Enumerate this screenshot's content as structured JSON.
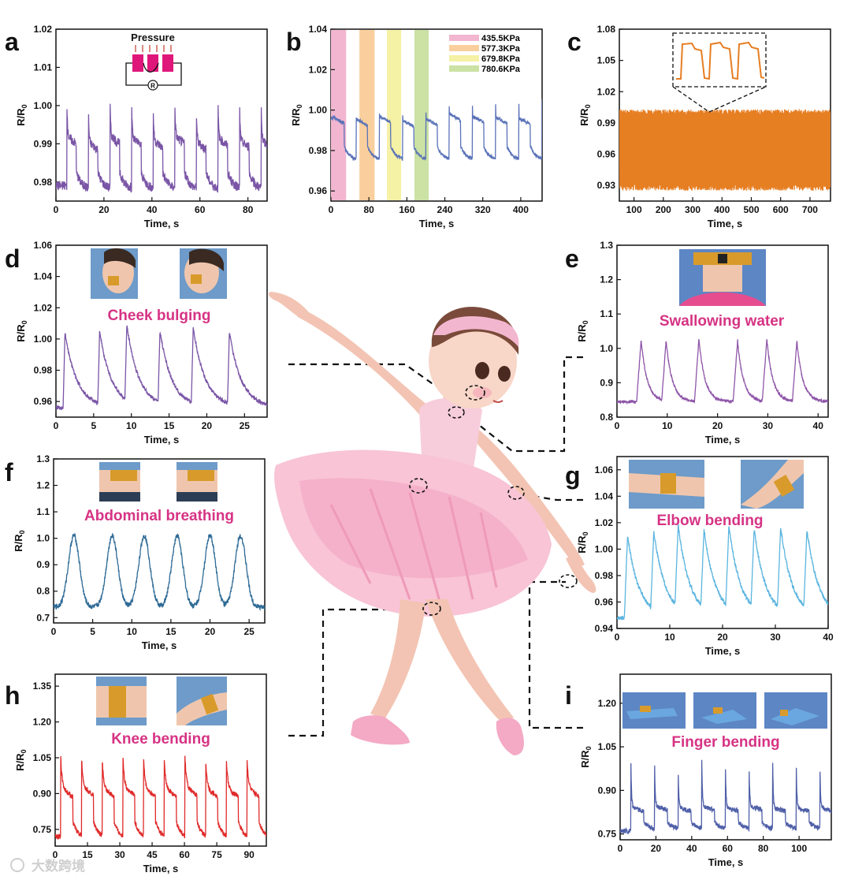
{
  "figure": {
    "watermark": "大数跨境",
    "colors": {
      "purple": "#7a55a6",
      "blue": "#5a72b8",
      "orange": "#e67e22",
      "teal": "#2f6b96",
      "lightblue": "#5bb5df",
      "red": "#e02a2a",
      "navy": "#4f5fa8",
      "caption": "#d63384",
      "band_pink": "#f2b6d0",
      "band_orange": "#f9cf9d",
      "band_yellow": "#f5f1a5",
      "band_green": "#cbe2a4"
    },
    "illustration": "ballerina-figure"
  },
  "chart_data": [
    {
      "id": "a",
      "type": "line",
      "letter": "a",
      "xlabel": "Time, s",
      "ylabel": "R/R0",
      "xlim": [
        0,
        88
      ],
      "ylim": [
        0.975,
        1.02
      ],
      "xticks": [
        0,
        20,
        40,
        60,
        80
      ],
      "yticks": [
        0.98,
        0.99,
        1.0,
        1.01,
        1.02
      ],
      "xtick_labels": [
        "0",
        "20",
        "40",
        "60",
        "80"
      ],
      "ytick_labels": [
        "0.98",
        "0.99",
        "1.00",
        "1.01",
        "1.02"
      ],
      "inset_label": "Pressure",
      "inset_symbol": "R",
      "color": "#7a55a6",
      "signal": {
        "kind": "step",
        "period": 9.0,
        "first": 4.5,
        "base": 0.978,
        "peak": 1.001,
        "plateau": 0.991,
        "decay": 0.25,
        "tail": 4.0,
        "noise": 0.0012,
        "start": 0.979,
        "vary": [
          0.002,
          -0.001,
          0.002,
          0.001,
          0.0,
          0.002,
          -0.001,
          0.001,
          0.0,
          0.0
        ]
      }
    },
    {
      "id": "b",
      "type": "line",
      "letter": "b",
      "xlabel": "Time, s",
      "ylabel": "R/R0",
      "xlim": [
        0,
        445
      ],
      "ylim": [
        0.955,
        1.04
      ],
      "xticks": [
        0,
        80,
        160,
        240,
        320,
        400
      ],
      "yticks": [
        0.96,
        0.98,
        1.0,
        1.02,
        1.04
      ],
      "xtick_labels": [
        "0",
        "80",
        "160",
        "240",
        "320",
        "400"
      ],
      "ytick_labels": [
        "0.96",
        "0.98",
        "1.00",
        "1.02",
        "1.04"
      ],
      "legend": [
        "435.5KPa",
        "577.3KPa",
        "679.8KPa",
        "780.6KPa"
      ],
      "bands": [
        [
          0,
          32
        ],
        [
          60,
          92
        ],
        [
          118,
          148
        ],
        [
          176,
          206
        ]
      ],
      "color": "#5a72b8",
      "signal": {
        "kind": "step",
        "period": 49,
        "first": 4,
        "base": 0.975,
        "peak": 1.004,
        "plateau": 0.995,
        "decay": 0.2,
        "tail": 24,
        "noise": 0.0008,
        "start": 0.996,
        "vary": [
          0.003,
          0.001,
          0.004,
          0.0,
          0.001,
          0.006,
          0.004,
          0.003,
          0.002,
          0.001
        ]
      }
    },
    {
      "id": "c",
      "type": "line",
      "letter": "c",
      "xlabel": "Time, s",
      "ylabel": "R/R0",
      "xlim": [
        50,
        770
      ],
      "ylim": [
        0.915,
        1.08
      ],
      "xticks": [
        100,
        200,
        300,
        400,
        500,
        600,
        700
      ],
      "yticks": [
        0.93,
        0.96,
        0.99,
        1.02,
        1.05,
        1.08
      ],
      "xtick_labels": [
        "100",
        "200",
        "300",
        "400",
        "500",
        "600",
        "700"
      ],
      "ytick_labels": [
        "0.93",
        "0.96",
        "0.99",
        "1.02",
        "1.05",
        "1.08"
      ],
      "color": "#e67e22",
      "signal": {
        "kind": "dense",
        "low": 0.925,
        "high": 1.003,
        "cycles": 260
      }
    },
    {
      "id": "d",
      "type": "line",
      "letter": "d",
      "xlabel": "Time, s",
      "ylabel": "R/R0",
      "xlim": [
        0,
        28
      ],
      "ylim": [
        0.95,
        1.06
      ],
      "xticks": [
        0,
        5,
        10,
        15,
        20,
        25
      ],
      "yticks": [
        0.96,
        0.98,
        1.0,
        1.02,
        1.04,
        1.06
      ],
      "xtick_labels": [
        "0",
        "5",
        "10",
        "15",
        "20",
        "25"
      ],
      "ytick_labels": [
        "0.96",
        "0.98",
        "1.00",
        "1.02",
        "1.04",
        "1.06"
      ],
      "caption": "Cheek bulging",
      "color": "#7a55a6",
      "signal": {
        "kind": "spike",
        "peaks": [
          1.2,
          5.8,
          9.4,
          13.8,
          18.2,
          23.0
        ],
        "base": 0.956,
        "height": 0.048,
        "width": 0.25,
        "decay": 1.6,
        "noise": 0.0012
      }
    },
    {
      "id": "e",
      "type": "line",
      "letter": "e",
      "xlabel": "Time, s",
      "ylabel": "R/R0",
      "xlim": [
        0,
        42
      ],
      "ylim": [
        0.8,
        1.3
      ],
      "xticks": [
        0,
        10,
        20,
        30,
        40
      ],
      "yticks": [
        0.8,
        0.9,
        1.0,
        1.1,
        1.2,
        1.3
      ],
      "xtick_labels": [
        "0",
        "10",
        "20",
        "30",
        "40"
      ],
      "ytick_labels": [
        "0.8",
        "0.9",
        "1.0",
        "1.1",
        "1.2",
        "1.3"
      ],
      "caption": "Swallowing water",
      "color": "#8e55a8",
      "signal": {
        "kind": "spike",
        "peaks": [
          4.8,
          9.8,
          16.3,
          24.0,
          29.8,
          35.8
        ],
        "base": 0.845,
        "height": 0.18,
        "width": 0.9,
        "decay": 1.2,
        "noise": 0.004
      }
    },
    {
      "id": "f",
      "type": "line",
      "letter": "f",
      "xlabel": "Time, s",
      "ylabel": "R/R0",
      "xlim": [
        0,
        27
      ],
      "ylim": [
        0.68,
        1.3
      ],
      "xticks": [
        0,
        5,
        10,
        15,
        20,
        25
      ],
      "yticks": [
        0.7,
        0.8,
        0.9,
        1.0,
        1.1,
        1.2,
        1.3
      ],
      "xtick_labels": [
        "0",
        "5",
        "10",
        "15",
        "20",
        "25"
      ],
      "ytick_labels": [
        "0.7",
        "0.8",
        "0.9",
        "1.0",
        "1.1",
        "1.2",
        "1.3"
      ],
      "caption": "Abdominal breathing",
      "color": "#2f6b96",
      "signal": {
        "kind": "wave",
        "peaks": [
          2.6,
          7.5,
          11.6,
          15.8,
          20.0,
          23.9
        ],
        "base": 0.74,
        "height": 0.27,
        "width": 1.0,
        "noise": 0.01
      }
    },
    {
      "id": "g",
      "type": "line",
      "letter": "g",
      "xlabel": "Time, s",
      "ylabel": "R/R0",
      "xlim": [
        0,
        40
      ],
      "ylim": [
        0.94,
        1.07
      ],
      "xticks": [
        0,
        10,
        20,
        30,
        40
      ],
      "yticks": [
        0.94,
        0.96,
        0.98,
        1.0,
        1.02,
        1.04,
        1.06
      ],
      "xtick_labels": [
        "0",
        "10",
        "20",
        "30",
        "40"
      ],
      "ytick_labels": [
        "0.94",
        "0.96",
        "0.98",
        "1.00",
        "1.02",
        "1.04",
        "1.06"
      ],
      "caption": "Elbow bending",
      "color": "#5bb5df",
      "signal": {
        "kind": "spike",
        "peaks": [
          2.0,
          7.0,
          11.6,
          16.5,
          21.2,
          26.0,
          31.0,
          36.0
        ],
        "base": 0.948,
        "height": 0.062,
        "width": 0.6,
        "decay": 2.2,
        "noise": 0.0015
      }
    },
    {
      "id": "h",
      "type": "line",
      "letter": "h",
      "xlabel": "Time, s",
      "ylabel": "R/R0",
      "xlim": [
        0,
        98
      ],
      "ylim": [
        0.68,
        1.4
      ],
      "xticks": [
        0,
        15,
        30,
        45,
        60,
        75,
        90
      ],
      "yticks": [
        0.75,
        0.9,
        1.05,
        1.2,
        1.35
      ],
      "xtick_labels": [
        "0",
        "15",
        "30",
        "45",
        "60",
        "75",
        "90"
      ],
      "ytick_labels": [
        "0.75",
        "0.90",
        "1.05",
        "1.20",
        "1.35"
      ],
      "caption": "Knee bending",
      "color": "#e02a2a",
      "signal": {
        "kind": "step",
        "period": 9.6,
        "first": 2.6,
        "base": 0.71,
        "peak": 1.05,
        "plateau": 0.92,
        "decay": 0.7,
        "tail": 5.6,
        "noise": 0.01,
        "start": 0.72,
        "vary": [
          0,
          0.01,
          0.0,
          0.01,
          0.0,
          0.0,
          0.01,
          0.0,
          0.0,
          0.0,
          0.0
        ]
      }
    },
    {
      "id": "i",
      "type": "line",
      "letter": "i",
      "xlabel": "Time, s",
      "ylabel": "R/R0",
      "xlim": [
        0,
        118
      ],
      "ylim": [
        0.73,
        1.3
      ],
      "xticks": [
        0,
        20,
        40,
        60,
        80,
        100
      ],
      "yticks": [
        0.75,
        0.9,
        1.05,
        1.2
      ],
      "xtick_labels": [
        "0",
        "20",
        "40",
        "60",
        "80",
        "100"
      ],
      "ytick_labels": [
        "0.75",
        "0.90",
        "1.05",
        "1.20"
      ],
      "caption": "Finger bending",
      "color": "#4f5fa8",
      "signal": {
        "kind": "step",
        "period": 13.2,
        "first": 6.0,
        "base": 0.765,
        "peak": 1.0,
        "plateau": 0.84,
        "decay": 0.35,
        "tail": 7.2,
        "noise": 0.008,
        "start": 0.76,
        "vary": [
          0,
          0.01,
          0.0,
          0.01,
          0.0,
          0.01,
          0.0,
          0.0,
          0.0,
          0.0
        ]
      }
    }
  ]
}
